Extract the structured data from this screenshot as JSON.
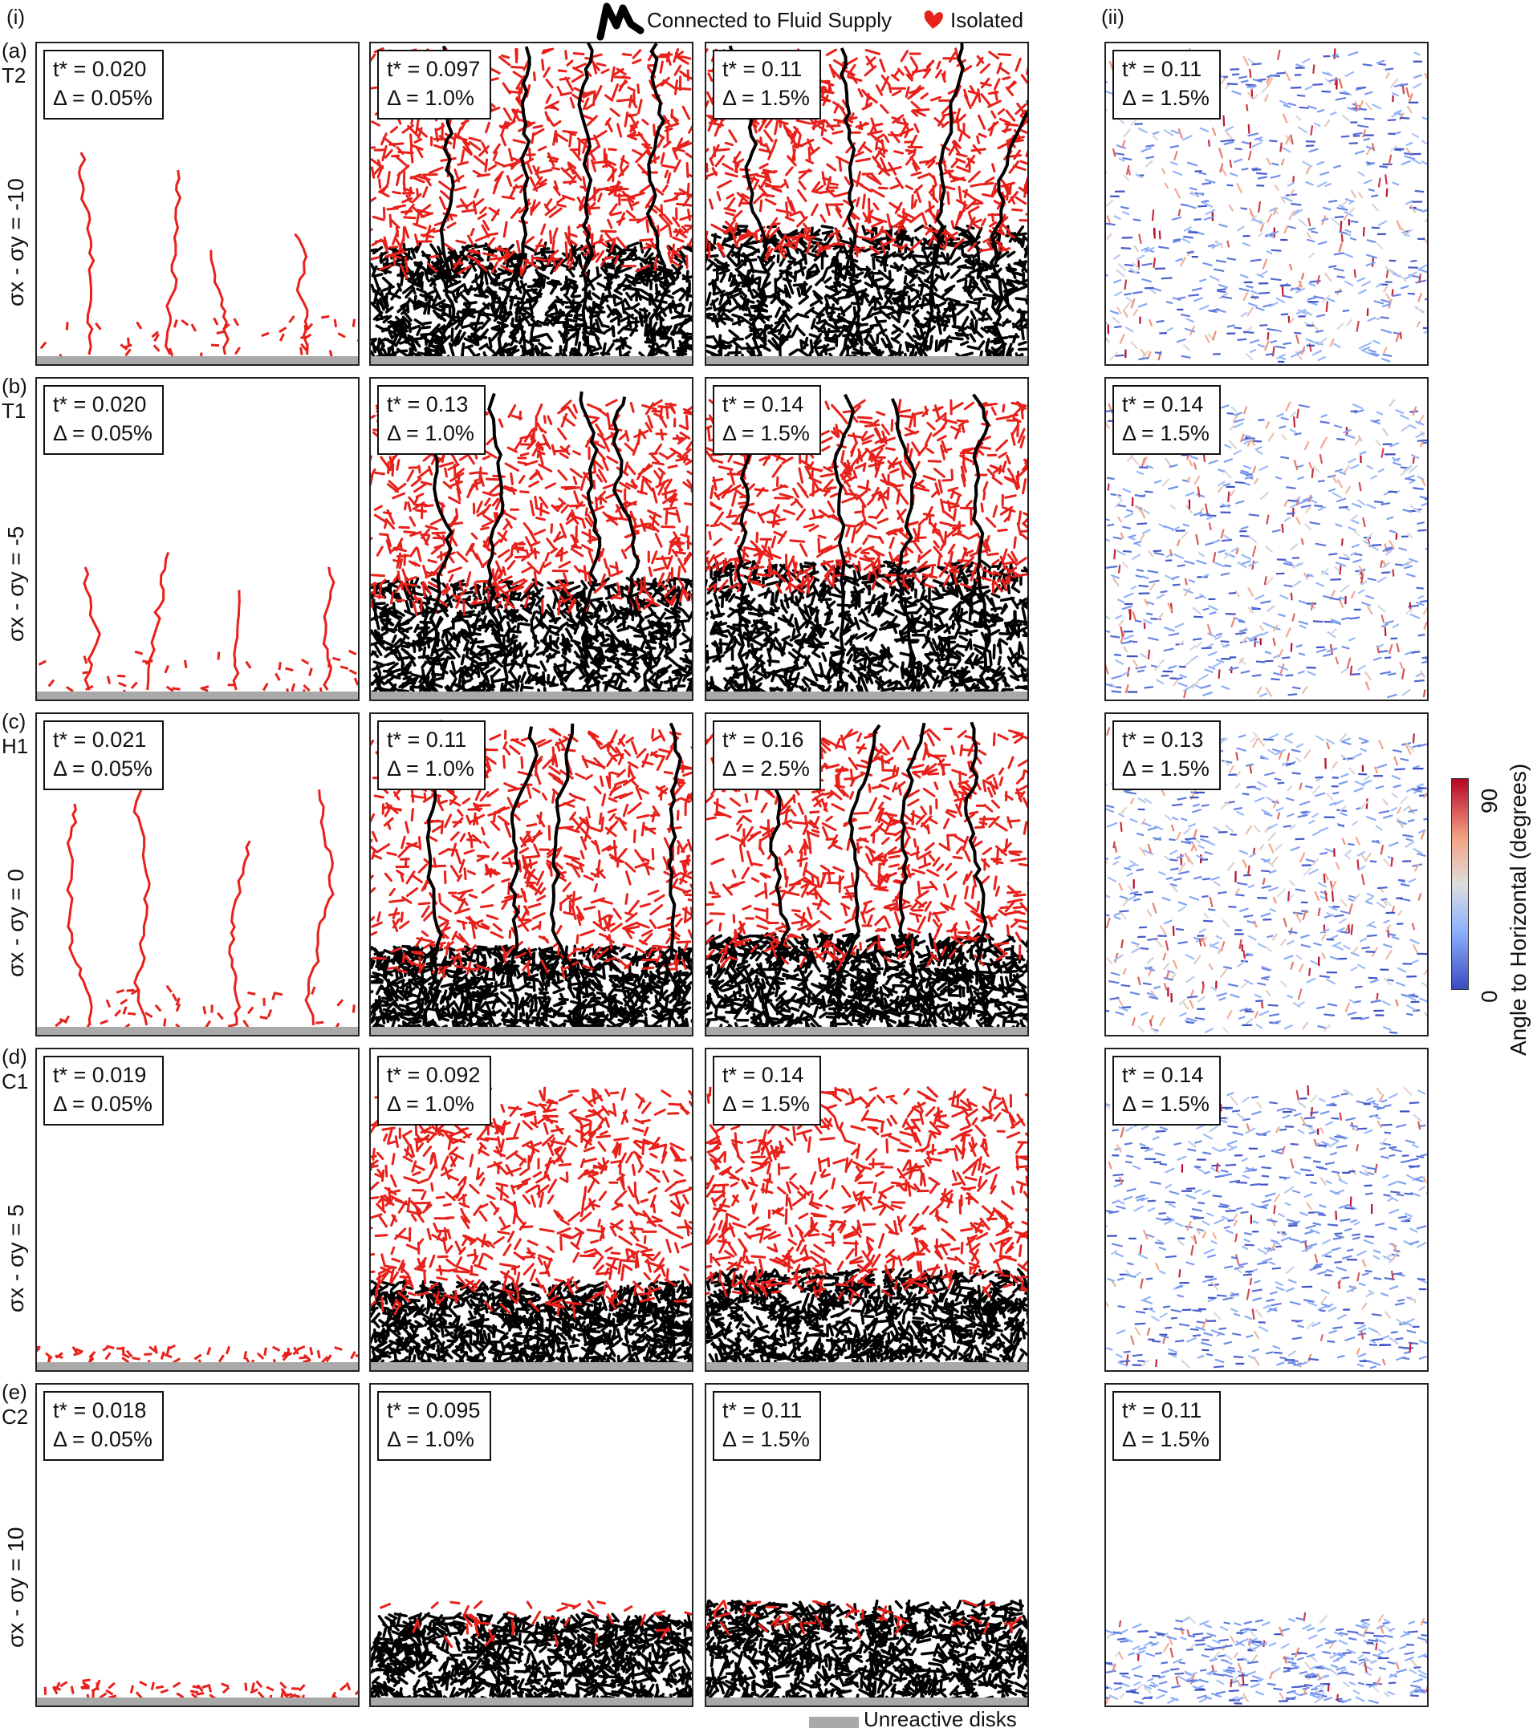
{
  "col_labels": {
    "i": "(i)",
    "ii": "(ii)"
  },
  "legend": {
    "connected": "Connected to Fluid Supply",
    "isolated": "Isolated",
    "unreactive": "Unreactive disks",
    "colors": {
      "connected": "#000000",
      "isolated": "#e8201a",
      "unreactive": "#a9a9a9"
    }
  },
  "colorbar": {
    "label": "Angle to Horizontal (degrees)",
    "max": "90",
    "min": "0",
    "colors": [
      "#3a4cc0",
      "#8eb2fd",
      "#dddddd",
      "#f4a283",
      "#b40426"
    ]
  },
  "rows": [
    {
      "tag": "(a)",
      "name": "T2",
      "stress": "σx - σy = -10",
      "panels": [
        {
          "t": "t* = 0.020",
          "d": "Δ = 0.05%"
        },
        {
          "t": "t* = 0.097",
          "d": "Δ = 1.0%"
        },
        {
          "t": "t* = 0.11",
          "d": "Δ = 1.5%"
        },
        {
          "t": "t* = 0.11",
          "d": "Δ = 1.5%"
        }
      ]
    },
    {
      "tag": "(b)",
      "name": "T1",
      "stress": "σx - σy = -5",
      "panels": [
        {
          "t": "t* = 0.020",
          "d": "Δ = 0.05%"
        },
        {
          "t": "t* = 0.13",
          "d": "Δ = 1.0%"
        },
        {
          "t": "t* = 0.14",
          "d": "Δ = 1.5%"
        },
        {
          "t": "t* = 0.14",
          "d": "Δ = 1.5%"
        }
      ]
    },
    {
      "tag": "(c)",
      "name": "H1",
      "stress": "σx - σy = 0",
      "panels": [
        {
          "t": "t* = 0.021",
          "d": "Δ = 0.05%"
        },
        {
          "t": "t* = 0.11",
          "d": "Δ = 1.0%"
        },
        {
          "t": "t* = 0.16",
          "d": "Δ = 2.5%"
        },
        {
          "t": "t* = 0.13",
          "d": "Δ = 1.5%"
        }
      ]
    },
    {
      "tag": "(d)",
      "name": "C1",
      "stress": "σx - σy = 5",
      "panels": [
        {
          "t": "t* = 0.019",
          "d": "Δ = 0.05%"
        },
        {
          "t": "t* = 0.092",
          "d": "Δ = 1.0%"
        },
        {
          "t": "t* = 0.14",
          "d": "Δ = 1.5%"
        },
        {
          "t": "t* = 0.14",
          "d": "Δ = 1.5%"
        }
      ]
    },
    {
      "tag": "(e)",
      "name": "C2",
      "stress": "σx - σy = 10",
      "panels": [
        {
          "t": "t* = 0.018",
          "d": "Δ = 0.05%"
        },
        {
          "t": "t* = 0.095",
          "d": "Δ = 1.0%"
        },
        {
          "t": "t* = 0.11",
          "d": "Δ = 1.5%"
        },
        {
          "t": "t* = 0.11",
          "d": "Δ = 1.5%"
        }
      ]
    }
  ]
}
